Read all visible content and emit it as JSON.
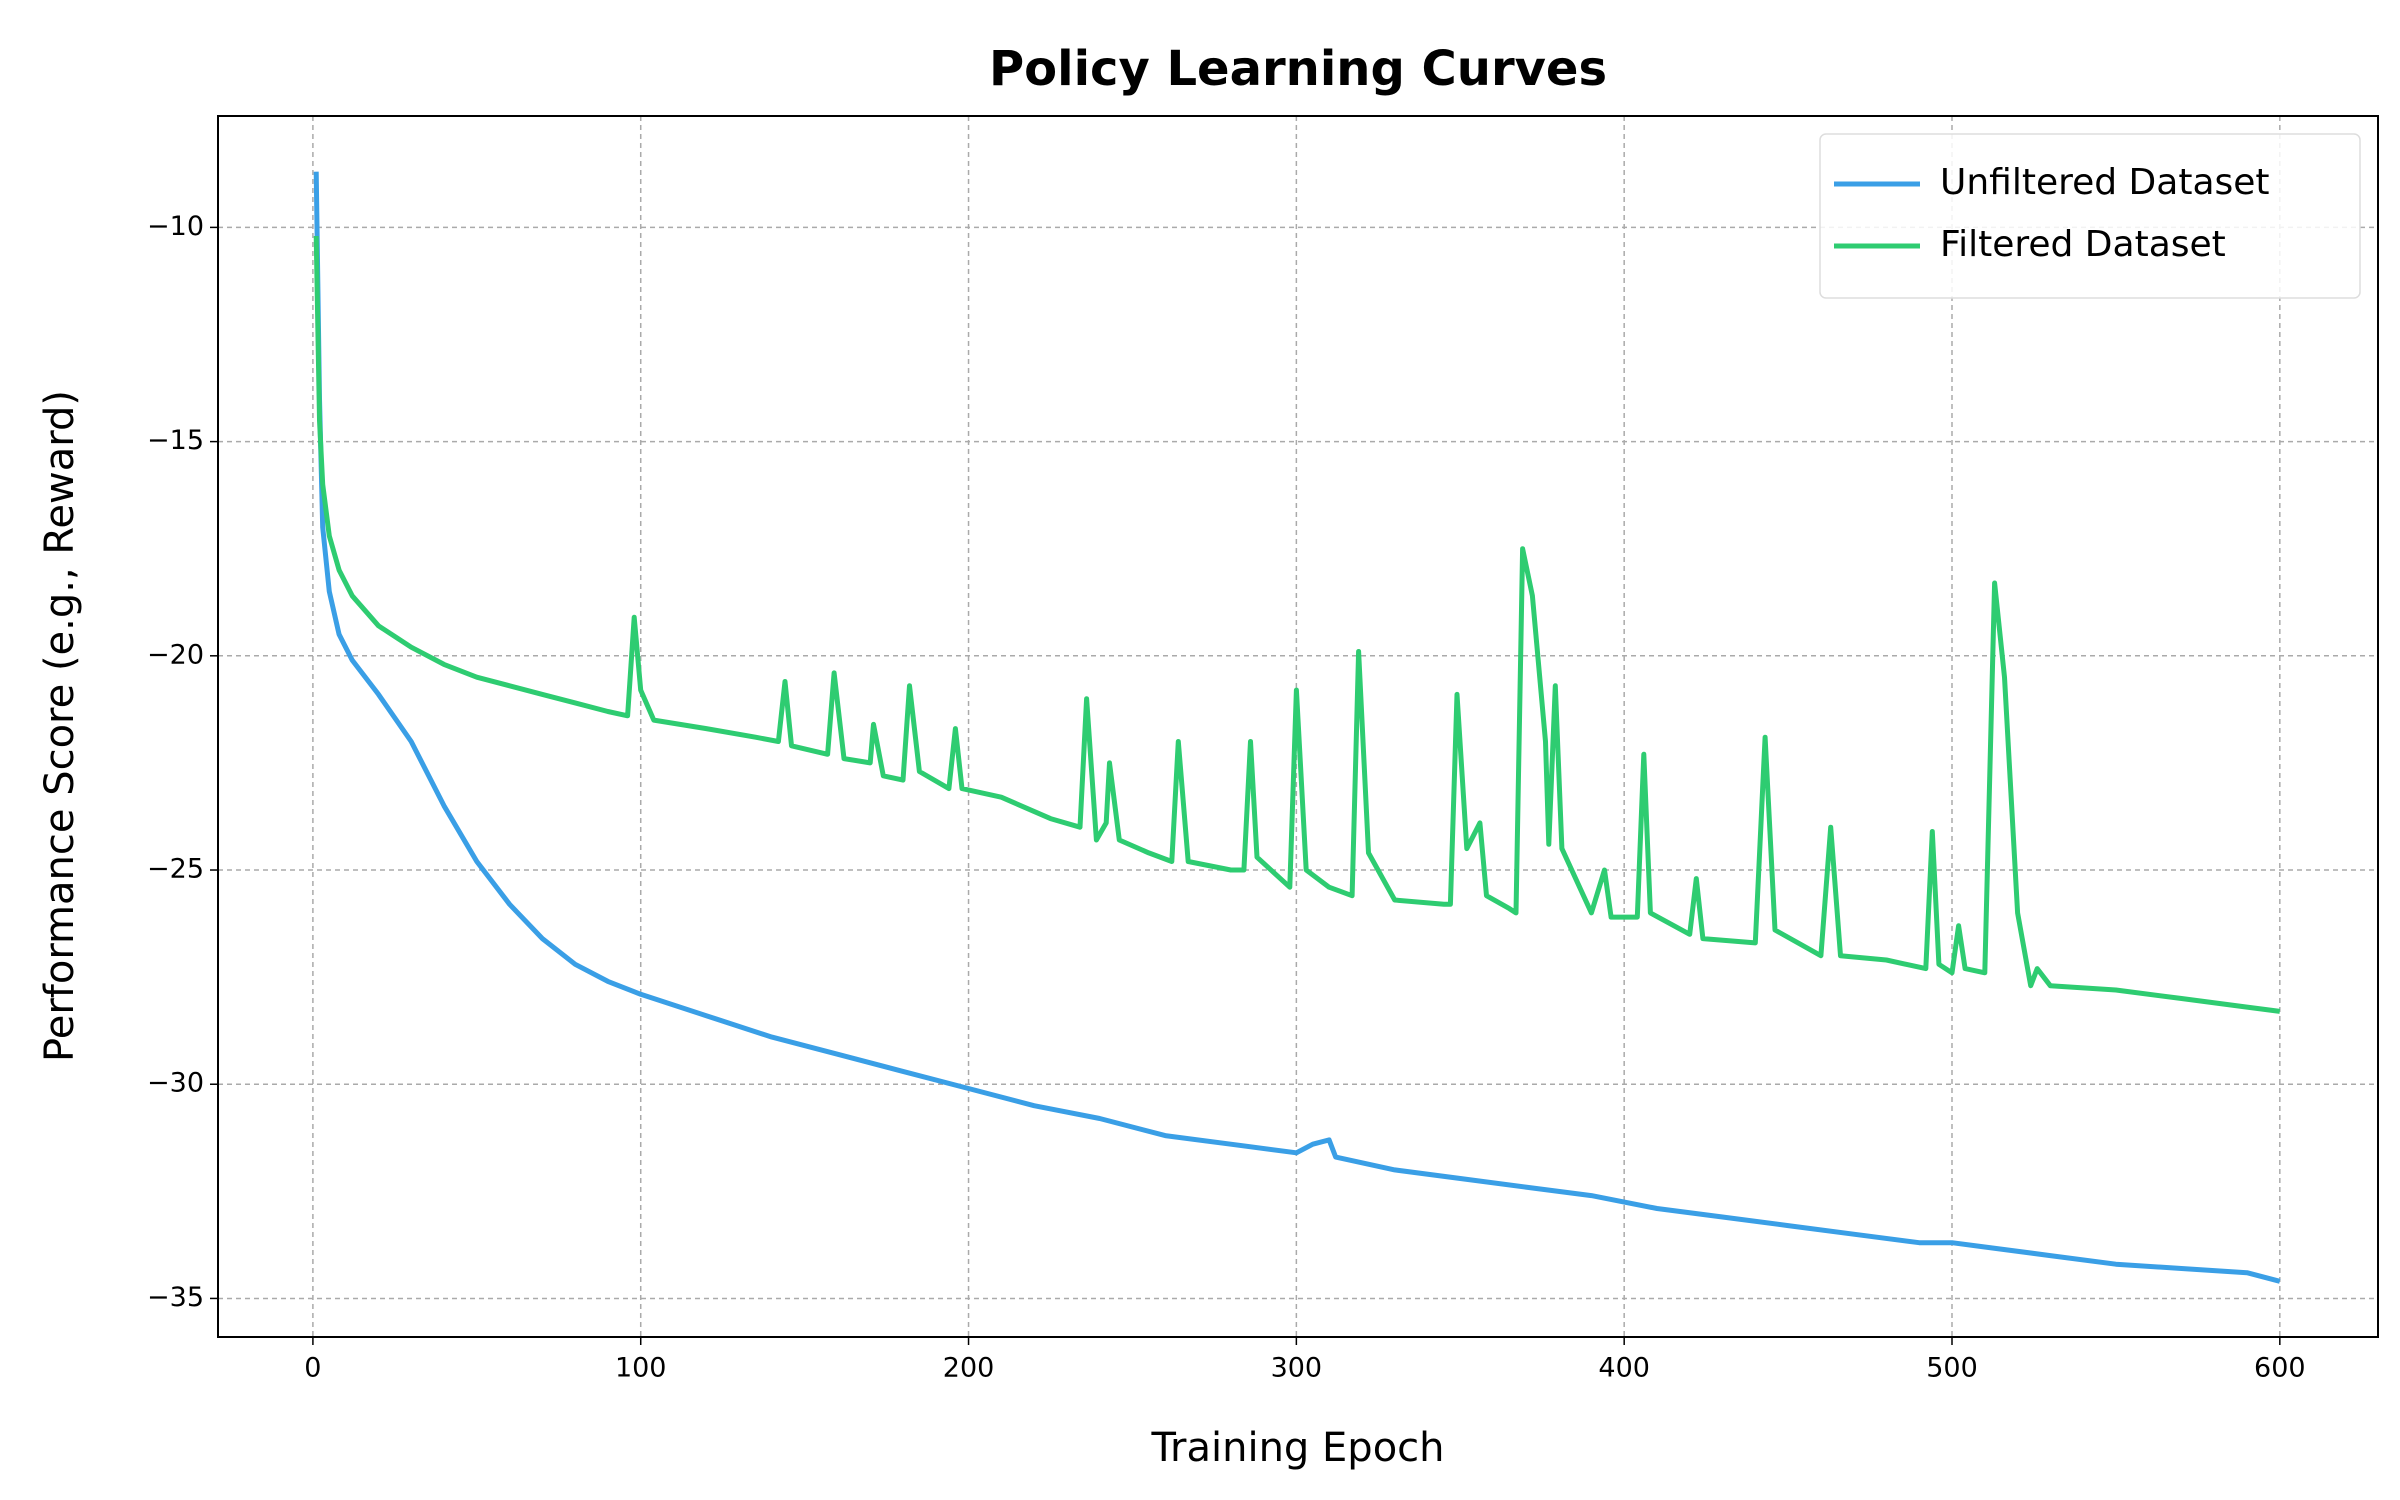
{
  "chart_data": {
    "type": "line",
    "title": "Policy Learning Curves",
    "x_label": "Training Epoch",
    "y_label": "Performance Score (e.g., Reward)",
    "xlim": [
      -28.95,
      629.95
    ],
    "xticks": [
      0,
      100,
      200,
      300,
      400,
      500,
      600
    ],
    "ylim": [
      -35.9,
      -7.4
    ],
    "yticks": [
      {
        "value": -35,
        "label": "−35"
      },
      {
        "value": -30,
        "label": "−30"
      },
      {
        "value": -25,
        "label": "−25"
      },
      {
        "value": -20,
        "label": "−20"
      },
      {
        "value": -15,
        "label": "−15"
      },
      {
        "value": -10,
        "label": "−10"
      }
    ],
    "grid": true,
    "legend": "upper right",
    "series": [
      {
        "name": "Unfiltered Dataset",
        "color": "#3a9fe6",
        "x": [
          1,
          2,
          3,
          5,
          8,
          12,
          20,
          30,
          40,
          50,
          60,
          70,
          80,
          90,
          100,
          120,
          140,
          160,
          180,
          200,
          220,
          240,
          260,
          280,
          300,
          305,
          310,
          312,
          330,
          350,
          370,
          390,
          410,
          430,
          450,
          470,
          490,
          500,
          510,
          530,
          550,
          570,
          590,
          600
        ],
        "values": [
          -8.7,
          -14,
          -17,
          -18.5,
          -19.5,
          -20.1,
          -20.9,
          -22,
          -23.5,
          -24.8,
          -25.8,
          -26.6,
          -27.2,
          -27.6,
          -27.9,
          -28.4,
          -28.9,
          -29.3,
          -29.7,
          -30.1,
          -30.5,
          -30.8,
          -31.2,
          -31.4,
          -31.6,
          -31.4,
          -31.3,
          -31.7,
          -32.0,
          -32.2,
          -32.4,
          -32.6,
          -32.9,
          -33.1,
          -33.3,
          -33.5,
          -33.7,
          -33.7,
          -33.8,
          -34.0,
          -34.2,
          -34.3,
          -34.4,
          -34.6
        ]
      },
      {
        "name": "Filtered Dataset",
        "color": "#2ecc71",
        "x": [
          1,
          2,
          3,
          5,
          8,
          12,
          20,
          30,
          40,
          50,
          60,
          70,
          80,
          90,
          96,
          98,
          100,
          104,
          120,
          135,
          142,
          144,
          146,
          157,
          159,
          162,
          170,
          171,
          174,
          180,
          182,
          185,
          194,
          196,
          198,
          210,
          225,
          234,
          236,
          239,
          242,
          243,
          246,
          255,
          262,
          264,
          267,
          280,
          284,
          286,
          288,
          298,
          300,
          303,
          310,
          317,
          319,
          322,
          330,
          345,
          347,
          349,
          352,
          356,
          358,
          365,
          367,
          369,
          372,
          376,
          377,
          379,
          381,
          390,
          394,
          396,
          404,
          406,
          408,
          420,
          422,
          424,
          440,
          443,
          446,
          460,
          463,
          466,
          480,
          492,
          494,
          496,
          500,
          502,
          504,
          510,
          513,
          516,
          520,
          524,
          526,
          530,
          550,
          570,
          590,
          600
        ],
        "values": [
          -10.2,
          -14.5,
          -16,
          -17.2,
          -18,
          -18.6,
          -19.3,
          -19.8,
          -20.2,
          -20.5,
          -20.7,
          -20.9,
          -21.1,
          -21.3,
          -21.4,
          -19.1,
          -20.8,
          -21.5,
          -21.7,
          -21.9,
          -22.0,
          -20.6,
          -22.1,
          -22.3,
          -20.4,
          -22.4,
          -22.5,
          -21.6,
          -22.8,
          -22.9,
          -20.7,
          -22.7,
          -23.1,
          -21.7,
          -23.1,
          -23.3,
          -23.8,
          -24.0,
          -21.0,
          -24.3,
          -23.9,
          -22.5,
          -24.3,
          -24.6,
          -24.8,
          -22.0,
          -24.8,
          -25.0,
          -25.0,
          -22.0,
          -24.7,
          -25.4,
          -20.8,
          -25.0,
          -25.4,
          -25.6,
          -19.9,
          -24.6,
          -25.7,
          -25.8,
          -25.8,
          -20.9,
          -24.5,
          -23.9,
          -25.6,
          -25.9,
          -26.0,
          -17.5,
          -18.6,
          -22.0,
          -24.4,
          -20.7,
          -24.5,
          -26.0,
          -25.0,
          -26.1,
          -26.1,
          -22.3,
          -26.0,
          -26.5,
          -25.2,
          -26.6,
          -26.7,
          -21.9,
          -26.4,
          -27.0,
          -24.0,
          -27.0,
          -27.1,
          -27.3,
          -24.1,
          -27.2,
          -27.4,
          -26.3,
          -27.3,
          -27.4,
          -18.3,
          -20.5,
          -26.0,
          -27.7,
          -27.3,
          -27.7,
          -27.8,
          -28.0,
          -28.2,
          -28.3
        ]
      }
    ]
  }
}
